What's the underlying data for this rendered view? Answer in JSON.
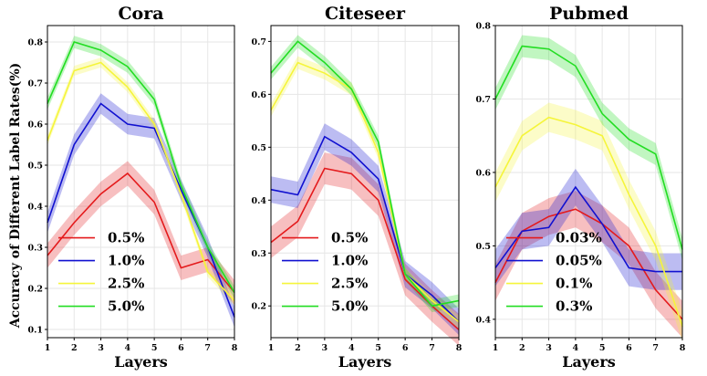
{
  "ylabel": "Accuracy of Different Label Rates(%)",
  "chart_data": [
    {
      "type": "line",
      "title": "Cora",
      "xlabel": "Layers",
      "x": [
        1,
        2,
        3,
        4,
        5,
        6,
        7,
        8
      ],
      "xticks": [
        "1",
        "2",
        "3",
        "4",
        "5",
        "6",
        "7",
        "8"
      ],
      "ylim": [
        0.08,
        0.84
      ],
      "yticks": [
        "0.1",
        "0.2",
        "0.3",
        "0.4",
        "0.5",
        "0.6",
        "0.7",
        "0.8"
      ],
      "ytick_values": [
        0.1,
        0.2,
        0.3,
        0.4,
        0.5,
        0.6,
        0.7,
        0.8
      ],
      "grid": true,
      "legend_position": "lower-left",
      "series": [
        {
          "name": "0.5%",
          "color": "#e41a1c",
          "values": [
            0.28,
            0.36,
            0.43,
            0.48,
            0.41,
            0.25,
            0.27,
            0.19
          ],
          "band": 0.03
        },
        {
          "name": "1.0%",
          "color": "#1010d0",
          "values": [
            0.36,
            0.55,
            0.65,
            0.6,
            0.59,
            0.44,
            0.3,
            0.13
          ],
          "band": 0.025
        },
        {
          "name": "2.5%",
          "color": "#f5f53a",
          "values": [
            0.56,
            0.73,
            0.75,
            0.69,
            0.6,
            0.43,
            0.24,
            0.17
          ],
          "band": 0.012
        },
        {
          "name": "5.0%",
          "color": "#22dd22",
          "values": [
            0.65,
            0.8,
            0.78,
            0.74,
            0.66,
            0.45,
            0.3,
            0.19
          ],
          "band": 0.015
        }
      ]
    },
    {
      "type": "line",
      "title": "Citeseer",
      "xlabel": "Layers",
      "x": [
        1,
        2,
        3,
        4,
        5,
        6,
        7,
        8
      ],
      "xticks": [
        "1",
        "2",
        "3",
        "4",
        "5",
        "6",
        "7",
        "8"
      ],
      "ylim": [
        0.14,
        0.73
      ],
      "yticks": [
        "0.2",
        "0.3",
        "0.4",
        "0.5",
        "0.6",
        "0.7"
      ],
      "ytick_values": [
        0.2,
        0.3,
        0.4,
        0.5,
        0.6,
        0.7
      ],
      "grid": true,
      "legend_position": "lower-left",
      "series": [
        {
          "name": "0.5%",
          "color": "#e41a1c",
          "values": [
            0.32,
            0.36,
            0.46,
            0.45,
            0.4,
            0.25,
            0.2,
            0.155
          ],
          "band": 0.03
        },
        {
          "name": "1.0%",
          "color": "#1010d0",
          "values": [
            0.42,
            0.41,
            0.52,
            0.49,
            0.44,
            0.26,
            0.22,
            0.17
          ],
          "band": 0.025
        },
        {
          "name": "2.5%",
          "color": "#f5f53a",
          "values": [
            0.57,
            0.66,
            0.64,
            0.61,
            0.49,
            0.26,
            0.21,
            0.17
          ],
          "band": 0.012
        },
        {
          "name": "5.0%",
          "color": "#22dd22",
          "values": [
            0.64,
            0.7,
            0.66,
            0.61,
            0.51,
            0.26,
            0.2,
            0.21
          ],
          "band": 0.012
        }
      ]
    },
    {
      "type": "line",
      "title": "Pubmed",
      "xlabel": "Layers",
      "x": [
        1,
        2,
        3,
        4,
        5,
        6,
        7,
        8
      ],
      "xticks": [
        "1",
        "2",
        "3",
        "4",
        "5",
        "6",
        "7",
        "8"
      ],
      "ylim": [
        0.375,
        0.8
      ],
      "yticks": [
        "0.4",
        "0.5",
        "0.6",
        "0.7",
        "0.8"
      ],
      "ytick_values": [
        0.4,
        0.5,
        0.6,
        0.7,
        0.8
      ],
      "grid": true,
      "legend_position": "lower-left",
      "series": [
        {
          "name": "0.03%",
          "color": "#e41a1c",
          "values": [
            0.45,
            0.52,
            0.54,
            0.55,
            0.53,
            0.5,
            0.44,
            0.4
          ],
          "band": 0.025
        },
        {
          "name": "0.05%",
          "color": "#1010d0",
          "values": [
            0.47,
            0.52,
            0.525,
            0.58,
            0.53,
            0.47,
            0.465,
            0.465
          ],
          "band": 0.025
        },
        {
          "name": "0.1%",
          "color": "#f5f53a",
          "values": [
            0.58,
            0.65,
            0.675,
            0.665,
            0.65,
            0.57,
            0.5,
            0.39
          ],
          "band": 0.02
        },
        {
          "name": "0.3%",
          "color": "#22dd22",
          "values": [
            0.7,
            0.772,
            0.768,
            0.745,
            0.68,
            0.645,
            0.625,
            0.495
          ],
          "band": 0.015
        }
      ]
    }
  ]
}
